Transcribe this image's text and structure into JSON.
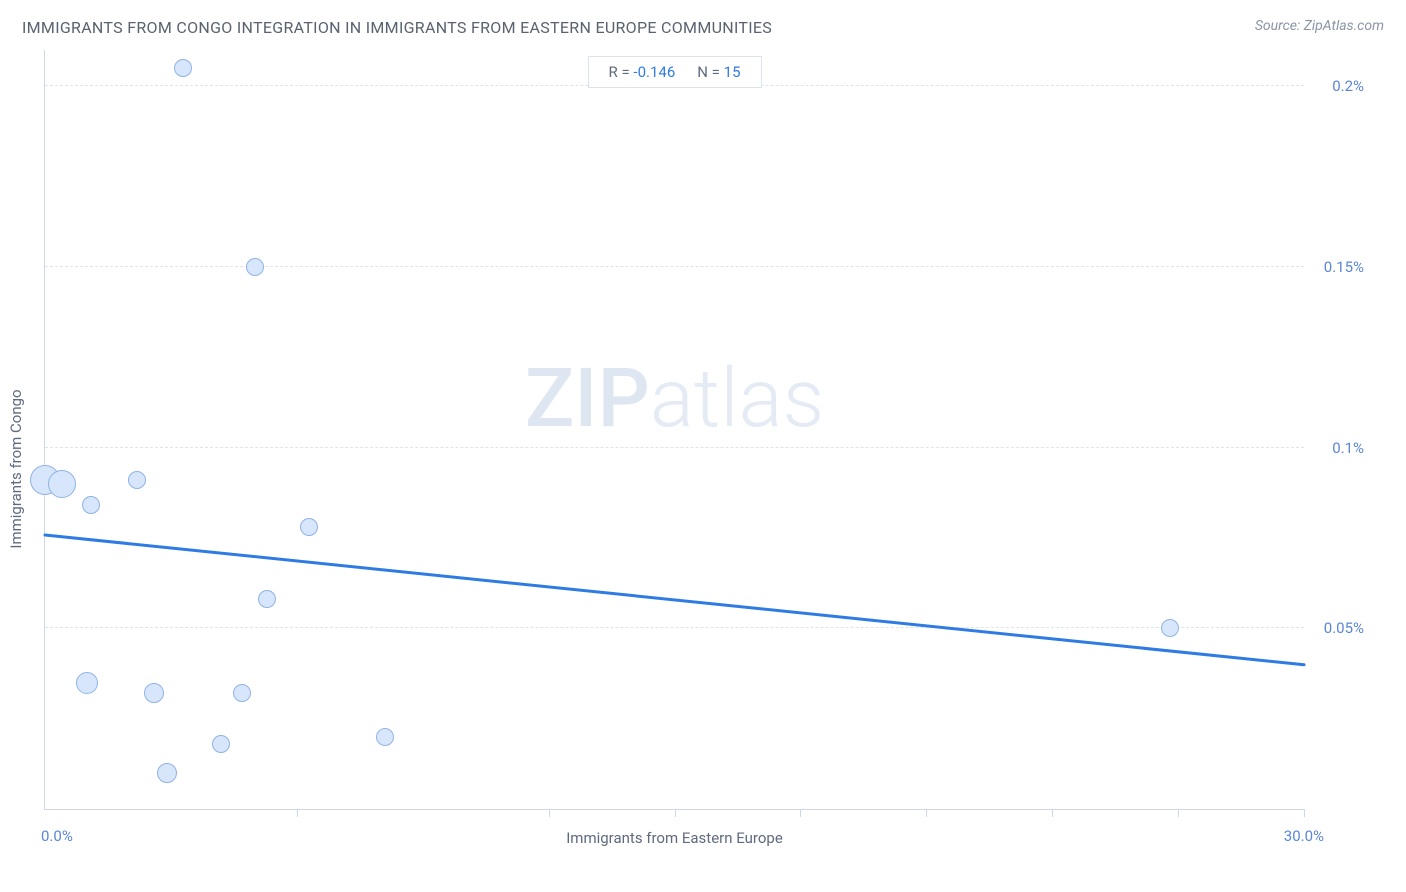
{
  "header": {
    "title": "IMMIGRANTS FROM CONGO INTEGRATION IN IMMIGRANTS FROM EASTERN EUROPE COMMUNITIES",
    "source": "Source: ZipAtlas.com"
  },
  "chart": {
    "type": "scatter",
    "background_color": "#ffffff",
    "grid_color": "#dfe3ec",
    "axis_color": "#cfd6e4",
    "xlabel": "Immigrants from Eastern Europe",
    "ylabel": "Immigrants from Congo",
    "label_fontsize": 15,
    "label_color": "#5f6a80",
    "xlim": [
      0.0,
      30.0
    ],
    "ylim": [
      0.0,
      0.21
    ],
    "x_ticks": [
      0,
      6,
      12,
      15,
      18,
      21,
      24,
      27,
      30
    ],
    "y_ticks": [
      0.05,
      0.1,
      0.15,
      0.2
    ],
    "x_min_label": "0.0%",
    "x_max_label": "30.0%",
    "y_tick_labels": [
      "0.05%",
      "0.1%",
      "0.15%",
      "0.2%"
    ],
    "tick_label_color": "#5b86d4",
    "point_fill": "#d7e6fb",
    "point_stroke": "#8fb3e6",
    "points": [
      {
        "x": 0.0,
        "y": 0.091,
        "r": 15
      },
      {
        "x": 0.4,
        "y": 0.09,
        "r": 14
      },
      {
        "x": 2.2,
        "y": 0.091,
        "r": 9
      },
      {
        "x": 1.1,
        "y": 0.084,
        "r": 9
      },
      {
        "x": 3.3,
        "y": 0.205,
        "r": 9
      },
      {
        "x": 5.0,
        "y": 0.15,
        "r": 9
      },
      {
        "x": 6.3,
        "y": 0.078,
        "r": 9
      },
      {
        "x": 5.3,
        "y": 0.058,
        "r": 9
      },
      {
        "x": 1.0,
        "y": 0.035,
        "r": 11
      },
      {
        "x": 2.6,
        "y": 0.032,
        "r": 10
      },
      {
        "x": 4.7,
        "y": 0.032,
        "r": 9
      },
      {
        "x": 2.9,
        "y": 0.01,
        "r": 10
      },
      {
        "x": 4.2,
        "y": 0.018,
        "r": 9
      },
      {
        "x": 8.1,
        "y": 0.02,
        "r": 9
      },
      {
        "x": 26.8,
        "y": 0.05,
        "r": 9
      }
    ],
    "trend": {
      "color": "#2f7be4",
      "width": 3,
      "y_at_xmin_pct": 36.1,
      "y_at_xmax_pct": 19.0
    },
    "legend": {
      "r_label": "R =",
      "r_value": "-0.146",
      "n_label": "N =",
      "n_value": "15",
      "border_color": "#dce3f0",
      "label_color": "#5f6a80",
      "value_color": "#2f7be4"
    },
    "watermark": {
      "bold": "ZIP",
      "light": "atlas",
      "color": "#c6d4ea"
    }
  }
}
